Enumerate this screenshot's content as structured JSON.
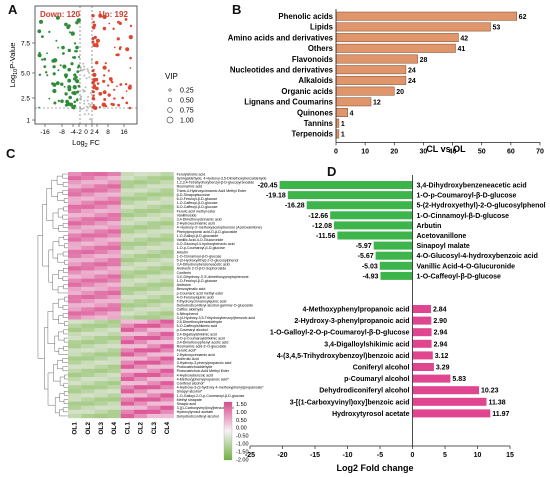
{
  "panel_letters": {
    "a": "A",
    "b": "B",
    "c": "C",
    "d": "D"
  },
  "chart_data": [
    {
      "panel": "A",
      "type": "scatter",
      "down_label": "Down: 120",
      "up_label": "Up: 192",
      "xlabel_main": "Log",
      "xlabel_sub": "2",
      "xlabel_tail": " FC",
      "ylabel_main": "Log",
      "ylabel_sub": "10",
      "ylabel_tail": "P-Value",
      "x_ticks": [
        "-16",
        "-8",
        "-4",
        "-2",
        "0",
        "2",
        "4",
        "8",
        "16"
      ],
      "y_ticks": [
        "1",
        "2.5",
        "5.0",
        "7.5"
      ],
      "legend_title": "VIP",
      "legend_items": [
        "0.25",
        "0.50",
        "0.75",
        "1.00"
      ],
      "colors": {
        "up": "#e0452e",
        "down": "#2f8a3a",
        "ns": "#bbbbbb"
      }
    },
    {
      "panel": "B",
      "type": "bar",
      "orientation": "horizontal",
      "categories": [
        "Phenolic acids",
        "Lipids",
        "Amino acids and derivatives",
        "Others",
        "Flavonoids",
        "Nucleotides and derivatives",
        "Alkaloids",
        "Organic acids",
        "Lignans and Coumarins",
        "Quinones",
        "Tannins",
        "Terpenoids"
      ],
      "values": [
        62,
        53,
        42,
        41,
        28,
        24,
        24,
        20,
        12,
        4,
        1,
        1
      ],
      "value_labels": [
        "62",
        "53",
        "42",
        "41",
        "28",
        "24",
        "24",
        "20",
        "12",
        "4",
        "1",
        "1"
      ],
      "xlim": [
        0,
        70
      ],
      "x_ticks": [
        "0",
        "10",
        "20",
        "30",
        "40",
        "50",
        "60",
        "70"
      ],
      "xlabel": "CL vs OL",
      "color": "#e0956a"
    },
    {
      "panel": "C",
      "type": "heatmap",
      "columns": [
        "OL1",
        "OL2",
        "OL3",
        "OL4",
        "CL1",
        "CL2",
        "CL3",
        "CL4"
      ],
      "rows": [
        "Ferulylshokic acid",
        "Syringaldehyde; 4-Hydroxy-3,5-Dimethoxybenzaldehyde",
        "1,2,3,4-Tetrahydroxybenzyl-β-D-glucopyranoside",
        "Rosmarinic acid",
        "Trans-4-Hydroxycinnamic Acid Methyl Ester",
        "β-D-Sinapoylsucrose",
        "6-O-Feruloyl-β-D-glucose",
        "1-O-Caffeoyl-β-D-glucose",
        "6-O-Caffeoyl-β-D-glucose",
        "Ferulic acid methyl ester",
        "Vanillinoside",
        "3,4-Dimethoxycinnamic acid",
        "2-Hydroxycinnamic acid",
        "4'-Hydroxy-3'-methoxyacetophenone (Acetovanillone)",
        "Phenylpropionic acid-O-β-D-glucoside",
        "1-O-Galloyl-β-D-glucoside",
        "Vanillic Acid-4-O-Glucuronide",
        "4-O-Glucosyl-4-hydroxybenzoic acid",
        "1-O-p-Coumaroyl-β-D-glucose",
        "Arbutin",
        "1-O-Cinnamoyl-β-D-glucose",
        "5-(2-Hydroxyethyl)-2-O-glucosylphenol",
        "3,4-Dihydroxybenzeneacetic acid",
        "Androsin 2-O-β-D-Sophoroside",
        "Coniferin",
        "3,4'-Dihydroxy-3',5'-dimethoxypropiophenone",
        "1-O-Feruloyl-β-D-glucose",
        "Androsin",
        "Benzoylmalic acid",
        "p-Coumaric acid methyl ester",
        "4-O-Feruloylquinic acid",
        "Trihydroxycinnamoylquinic acid",
        "Dehydrodiconiferyl alcohol-gamma'-O-glucoside",
        "Caffeic aldehyde",
        "4-Nitrophenol",
        "3-(4-Hydroxy-3,5-Trihydroxybenzoyl)benzoic acid",
        "2,5-Dimethoxybenzaldehyde",
        "5-O-Caffeoylshikimic acid",
        "p-Coumaryl alcohol",
        "3,4-Digalloylshikimic acid",
        "3-O-p-Coumaroylshikimic acid",
        "3,4-Dimethoxyphenyl acetic acid",
        "Rosmarinic acid-3'-O-glucoside",
        "Ferulic acid*",
        "2-Hydroxycinnamic acid",
        "Isoferulic Acid",
        "3-Hydroxy-3-phenylpropanoic acid",
        "Protocatechualdehyde",
        "Protocatechuic Acid Methyl Ester",
        "4-Hydroxybenzoic acid",
        "4-Methoxyphenylpropanoic acid*",
        "Coniferyl alcohol*",
        "4-Hydroxy-3-(3-hydroxy-4-methoxyphenyl)propanoate*",
        "Sinapyl alcohol*",
        "1-O-Galloyl-2-O-p-Coumaroyl-β-D-glucose",
        "Methyl sinapate",
        "Sinapic acid",
        "3-[(1-Carboxyvinyl)oxy]benzoic acid",
        "Hydroxytyrosol acetate",
        "Dehydrodiconiferyl alcohol"
      ],
      "legend_ticks": [
        "1.50",
        "1.00",
        "0.50",
        "0.00",
        "-0.50",
        "-1.00",
        "-1.50",
        "-2.00"
      ],
      "colors": {
        "high": "#d9488d",
        "mid": "#f7f1f6",
        "low": "#6fb23d"
      }
    },
    {
      "panel": "D",
      "type": "bar",
      "orientation": "horizontal",
      "categories": [
        "3,4-Dihydroxybenzeneacetic acid",
        "1-O-p-Coumaroyl-β-D-glucose",
        "5-(2-Hydroxyethyl)-2-O-glucosylphenol",
        "1-O-Cinnamoyl-β-D-glucose",
        "Arbutin",
        "Acetovanillone",
        "Sinapoyl malate",
        "4-O-Glucosyl-4-hydroxybenzoic acid",
        "Vanillic Acid-4-O-Glucuronide",
        "1-O-Caffeoyl-β-D-glucose",
        "4-Methoxyphenylpropanoic acid",
        "2-Hydroxy-3-phenylpropanoic acid",
        "1-O-Galloyl-2-O-p-Coumaroyl-β-D-glucose",
        "3,4-Digalloylshikimic acid",
        "4-(3,4,5-Trihydroxybenzoyl)benzoic acid",
        "Coniferyl alcohol",
        "p-Coumaryl alcohol",
        "Dehydrodiconiferyl alcohol",
        "3-[(1-Carboxyvinyl)oxy]benzoic acid",
        "Hydroxytyrosol acetate"
      ],
      "values": [
        -20.45,
        -19.18,
        -16.28,
        -12.66,
        -12.08,
        -11.56,
        -5.97,
        -5.67,
        -5.03,
        -4.93,
        2.84,
        2.9,
        2.94,
        2.94,
        3.12,
        3.29,
        5.83,
        10.23,
        11.38,
        11.97
      ],
      "value_labels": [
        "-20.45",
        "-19.18",
        "-16.28",
        "-12.66",
        "-12.08",
        "-11.56",
        "-5.97",
        "-5.67",
        "-5.03",
        "-4.93",
        "2.84",
        "2.90",
        "2.94",
        "2.94",
        "3.12",
        "3.29",
        "5.83",
        "10.23",
        "11.38",
        "11.97"
      ],
      "xlim": [
        -25,
        15
      ],
      "x_ticks": [
        "-25",
        "-20",
        "-15",
        "-10",
        "-5",
        "0",
        "5",
        "10",
        "15"
      ],
      "xlabel": "Log2 Fold change",
      "colors": {
        "negative": "#3db54a",
        "positive": "#e0468f"
      }
    }
  ]
}
